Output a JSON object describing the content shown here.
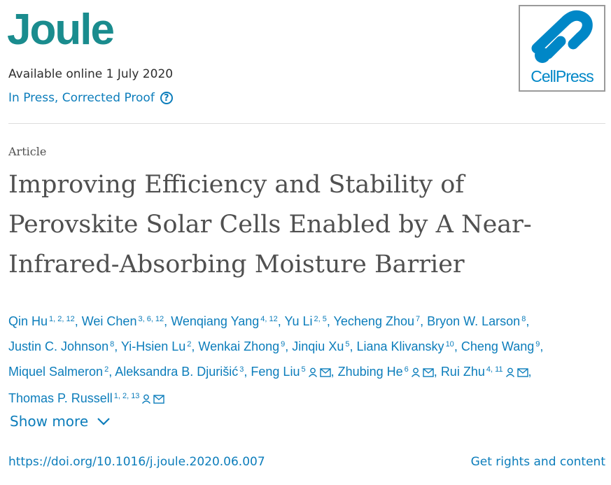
{
  "journal": {
    "name": "Joule"
  },
  "availability": "Available online 1 July 2020",
  "status": {
    "label": "In Press, Corrected Proof",
    "help_icon": "question-circle-icon",
    "help_glyph": "?"
  },
  "publisher_logo": {
    "text": "CellPress",
    "color": "#0087c7"
  },
  "article_type": "Article",
  "title": "Improving Efficiency and Stability of Perovskite Solar Cells Enabled by A Near-Infrared-Absorbing Moisture Barrier",
  "authors": [
    {
      "name": "Qin Hu",
      "affil": "1, 2, 12"
    },
    {
      "name": "Wei Chen",
      "affil": "3, 6, 12"
    },
    {
      "name": "Wenqiang Yang",
      "affil": "4, 12"
    },
    {
      "name": "Yu Li",
      "affil": "2, 5"
    },
    {
      "name": "Yecheng Zhou",
      "affil": "7"
    },
    {
      "name": "Bryon W. Larson",
      "affil": "8"
    },
    {
      "name": "Justin C. Johnson",
      "affil": "8"
    },
    {
      "name": "Yi-Hsien Lu",
      "affil": "2"
    },
    {
      "name": "Wenkai Zhong",
      "affil": "9"
    },
    {
      "name": "Jinqiu Xu",
      "affil": "5"
    },
    {
      "name": "Liana Klivansky",
      "affil": "10"
    },
    {
      "name": "Cheng Wang",
      "affil": "9"
    },
    {
      "name": "Miquel Salmeron",
      "affil": "2"
    },
    {
      "name": "Aleksandra B. Djurišić",
      "affil": "3"
    },
    {
      "name": "Feng Liu",
      "affil": "5",
      "corresponding": true
    },
    {
      "name": "Zhubing He",
      "affil": "6",
      "corresponding": true
    },
    {
      "name": "Rui Zhu",
      "affil": "4, 11",
      "corresponding": true
    },
    {
      "name": "Thomas P. Russell",
      "affil": "1, 2, 13",
      "corresponding": true
    }
  ],
  "show_more": "Show more",
  "doi": "https://doi.org/10.1016/j.joule.2020.06.007",
  "rights": "Get rights and content",
  "colors": {
    "brand": "#1a8c8e",
    "link": "#0c7dbb",
    "heading": "#505050"
  }
}
